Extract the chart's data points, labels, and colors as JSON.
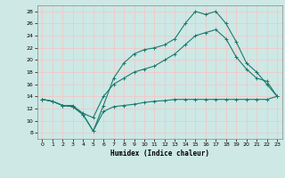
{
  "xlabel": "Humidex (Indice chaleur)",
  "background_color": "#cde8e5",
  "grid_color": "#f0c8c8",
  "line_color": "#1a7a6e",
  "xlim": [
    -0.5,
    23.5
  ],
  "ylim": [
    7,
    29
  ],
  "xticks": [
    0,
    1,
    2,
    3,
    4,
    5,
    6,
    7,
    8,
    9,
    10,
    11,
    12,
    13,
    14,
    15,
    16,
    17,
    18,
    19,
    20,
    21,
    22,
    23
  ],
  "yticks": [
    8,
    10,
    12,
    14,
    16,
    18,
    20,
    22,
    24,
    26,
    28
  ],
  "line1_x": [
    0,
    1,
    2,
    3,
    4,
    5,
    6,
    7,
    8,
    9,
    10,
    11,
    12,
    13,
    14,
    15,
    16,
    17,
    18,
    19,
    20,
    21,
    22,
    23
  ],
  "line1_y": [
    13.5,
    13.2,
    12.5,
    12.3,
    11.0,
    8.3,
    12.5,
    17.0,
    19.5,
    21.0,
    21.7,
    22.0,
    22.5,
    23.5,
    26.0,
    28.0,
    27.5,
    28.0,
    26.0,
    23.0,
    19.5,
    18.0,
    16.0,
    14.0
  ],
  "line2_x": [
    0,
    1,
    2,
    3,
    4,
    5,
    6,
    7,
    8,
    9,
    10,
    11,
    12,
    13,
    14,
    15,
    16,
    17,
    18,
    19,
    20,
    21,
    22,
    23
  ],
  "line2_y": [
    13.5,
    13.2,
    12.5,
    12.5,
    11.2,
    10.5,
    14.0,
    16.0,
    17.0,
    18.0,
    18.5,
    19.0,
    20.0,
    21.0,
    22.5,
    24.0,
    24.5,
    25.0,
    23.5,
    20.5,
    18.5,
    17.0,
    16.5,
    14.0
  ],
  "line3_x": [
    0,
    1,
    2,
    3,
    4,
    5,
    6,
    7,
    8,
    9,
    10,
    11,
    12,
    13,
    14,
    15,
    16,
    17,
    18,
    19,
    20,
    21,
    22,
    23
  ],
  "line3_y": [
    13.5,
    13.2,
    12.5,
    12.3,
    11.0,
    8.3,
    11.5,
    12.3,
    12.5,
    12.7,
    13.0,
    13.2,
    13.3,
    13.5,
    13.5,
    13.5,
    13.5,
    13.5,
    13.5,
    13.5,
    13.5,
    13.5,
    13.5,
    14.0
  ]
}
